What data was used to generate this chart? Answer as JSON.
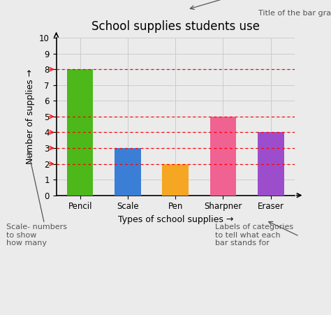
{
  "title": "School supplies students use",
  "categories": [
    "Pencil",
    "Scale",
    "Pen",
    "Sharpner",
    "Eraser"
  ],
  "values": [
    8,
    3,
    2,
    5,
    4
  ],
  "bar_colors": [
    "#4cb81a",
    "#3a7fd5",
    "#f5a623",
    "#f06292",
    "#9c4dcc"
  ],
  "xlabel": "Types of school supplies →",
  "ylabel": "Number of supplies →",
  "ylim": [
    0,
    10
  ],
  "yticks": [
    0,
    1,
    2,
    3,
    4,
    5,
    6,
    7,
    8,
    9,
    10
  ],
  "background_color": "#ebebeb",
  "grid_color": "#cccccc",
  "red_dashed_levels": [
    2,
    3,
    4,
    5,
    8
  ],
  "annotation_title": "Title of the bar graph",
  "annotation_scale": "Scale- numbers\nto show\nhow many",
  "annotation_labels": "Labels of categories\nto tell what each\nbar stands for",
  "title_fontsize": 12,
  "axis_label_fontsize": 9,
  "annotation_fontsize": 8
}
